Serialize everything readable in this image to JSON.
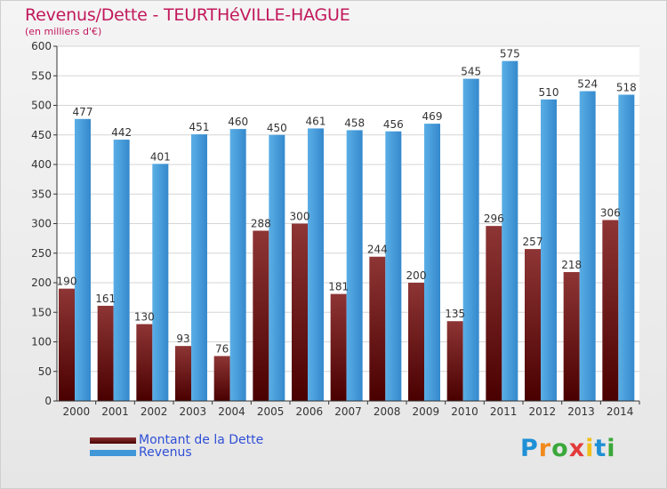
{
  "chart_data": {
    "type": "bar",
    "title": "Revenus/Dette - TEURTHéVILLE-HAGUE",
    "subtitle": "(en milliers d'€)",
    "categories": [
      "2000",
      "2001",
      "2002",
      "2003",
      "2004",
      "2005",
      "2006",
      "2007",
      "2008",
      "2009",
      "2010",
      "2011",
      "2012",
      "2013",
      "2014"
    ],
    "series": [
      {
        "name": "Montant de la Dette",
        "color": "#7a1f1f",
        "values": [
          190,
          161,
          130,
          93,
          76,
          288,
          300,
          181,
          244,
          200,
          135,
          296,
          257,
          218,
          306
        ]
      },
      {
        "name": "Revenus",
        "color": "#3f97d8",
        "values": [
          477,
          442,
          401,
          451,
          460,
          450,
          461,
          458,
          456,
          469,
          545,
          575,
          510,
          524,
          518
        ]
      }
    ],
    "ylim": [
      0,
      600
    ],
    "yticks": [
      0,
      50,
      100,
      150,
      200,
      250,
      300,
      350,
      400,
      450,
      500,
      550,
      600
    ],
    "grid": true,
    "legend_position": "bottom-left"
  },
  "brand": {
    "letters": [
      "P",
      "r",
      "o",
      "x",
      "i",
      "t",
      "i"
    ],
    "colors": [
      "#1e90d6",
      "#f08a1c",
      "#3aa83a",
      "#e23b3b",
      "#f0c01c",
      "#1e90d6",
      "#3aa83a"
    ]
  }
}
